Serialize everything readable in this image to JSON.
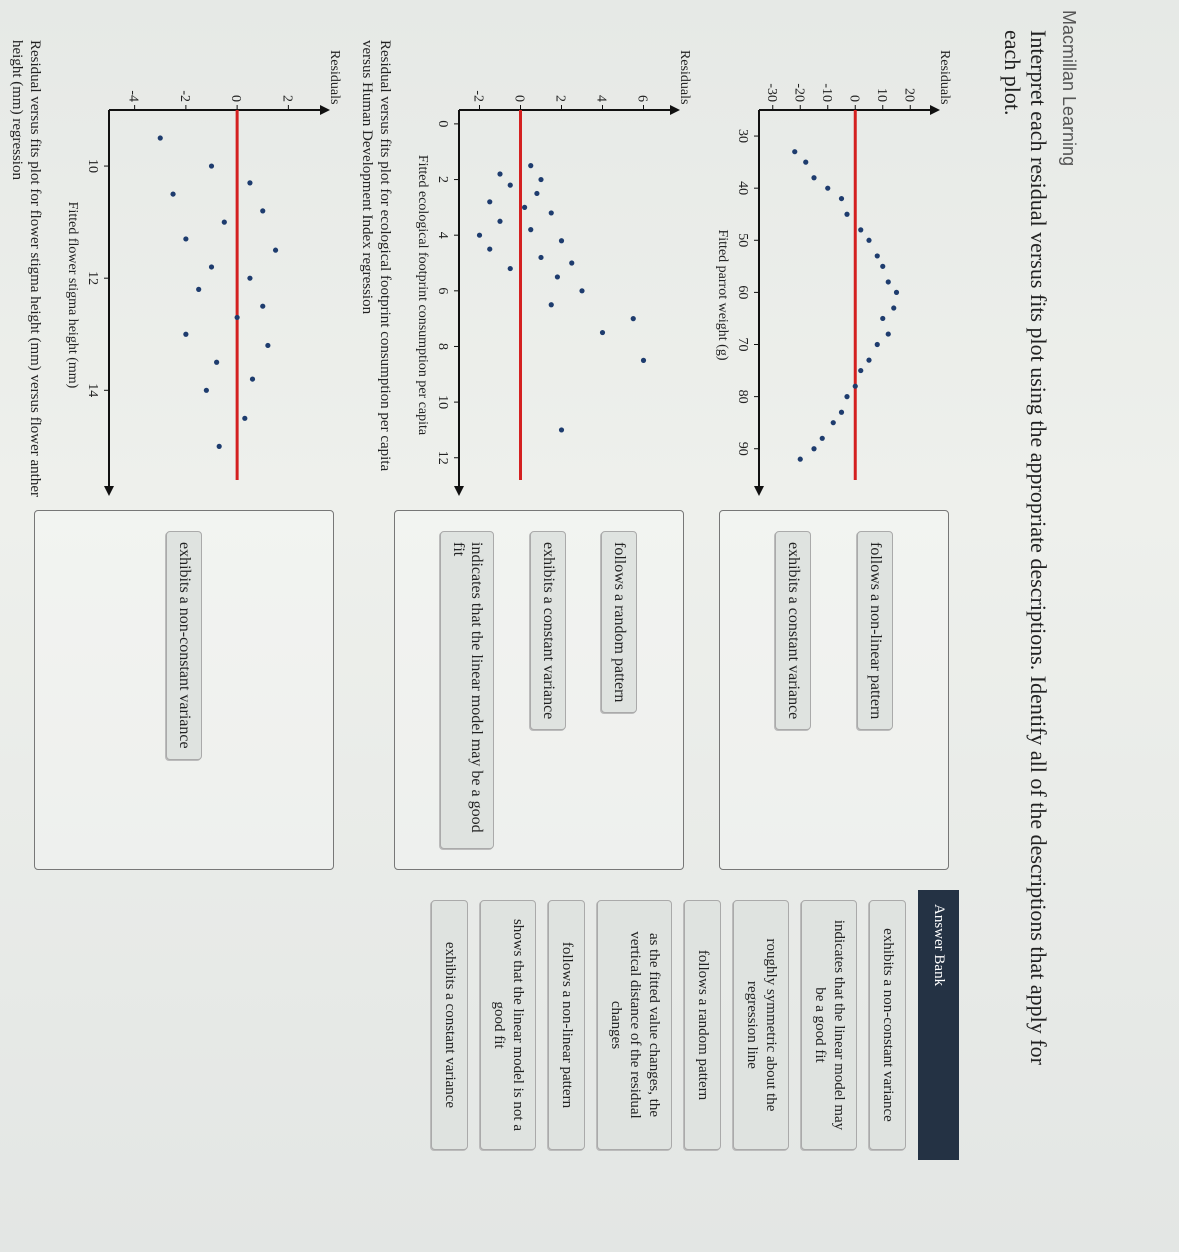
{
  "header": {
    "brand": "Macmillan Learning",
    "question": "Interpret each residual versus fits plot using the appropriate descriptions. Identify all of the descriptions that apply for each plot."
  },
  "plots": [
    {
      "ylabel": "Residuals",
      "xlabel": "Fitted parrot weight (g)",
      "caption": null,
      "xlim": [
        25,
        96
      ],
      "ylim": [
        -35,
        25
      ],
      "xticks": [
        30,
        40,
        50,
        60,
        70,
        80,
        90
      ],
      "yticks": [
        20,
        10,
        0,
        -10,
        -20,
        -30
      ],
      "points": [
        [
          33,
          -22
        ],
        [
          35,
          -18
        ],
        [
          38,
          -15
        ],
        [
          40,
          -10
        ],
        [
          42,
          -5
        ],
        [
          45,
          -3
        ],
        [
          48,
          2
        ],
        [
          50,
          5
        ],
        [
          53,
          8
        ],
        [
          55,
          10
        ],
        [
          58,
          12
        ],
        [
          60,
          15
        ],
        [
          63,
          14
        ],
        [
          65,
          10
        ],
        [
          68,
          12
        ],
        [
          70,
          8
        ],
        [
          73,
          5
        ],
        [
          75,
          2
        ],
        [
          78,
          0
        ],
        [
          80,
          -3
        ],
        [
          83,
          -5
        ],
        [
          85,
          -8
        ],
        [
          88,
          -12
        ],
        [
          90,
          -15
        ],
        [
          92,
          -20
        ]
      ]
    },
    {
      "ylabel": "Residuals",
      "xlabel": "Fitted ecological footprint consumption per capita",
      "caption": "Residual versus fits plot for ecological footprint consumption per capita versus Human Development Index regression",
      "xlim": [
        -0.5,
        12.8
      ],
      "ylim": [
        -3,
        7
      ],
      "xticks": [
        0,
        2,
        4,
        6,
        8,
        10,
        12
      ],
      "yticks": [
        6,
        4,
        2,
        0,
        -2
      ],
      "points": [
        [
          1.5,
          0.5
        ],
        [
          1.8,
          -1
        ],
        [
          2,
          1
        ],
        [
          2.2,
          -0.5
        ],
        [
          2.5,
          0.8
        ],
        [
          2.8,
          -1.5
        ],
        [
          3,
          0.2
        ],
        [
          3.2,
          1.5
        ],
        [
          3.5,
          -1
        ],
        [
          3.8,
          0.5
        ],
        [
          4,
          -2
        ],
        [
          4.2,
          2
        ],
        [
          4.5,
          -1.5
        ],
        [
          4.8,
          1
        ],
        [
          5,
          2.5
        ],
        [
          5.2,
          -0.5
        ],
        [
          5.5,
          1.8
        ],
        [
          6,
          3
        ],
        [
          6.5,
          1.5
        ],
        [
          7,
          5.5
        ],
        [
          7.5,
          4
        ],
        [
          8.5,
          6
        ],
        [
          11,
          2
        ]
      ]
    },
    {
      "ylabel": "Residuals",
      "xlabel": "Fitted flower stigma height (mm)",
      "caption": "Residual versus fits plot for flower stigma height (mm) versus flower anther height (mm) regression",
      "xlim": [
        9,
        15.6
      ],
      "ylim": [
        -5,
        3
      ],
      "xticks": [
        10,
        12,
        14
      ],
      "yticks": [
        2,
        0,
        -2,
        -4
      ],
      "points": [
        [
          9.5,
          -3
        ],
        [
          10,
          -1
        ],
        [
          10.3,
          0.5
        ],
        [
          10.5,
          -2.5
        ],
        [
          10.8,
          1
        ],
        [
          11,
          -0.5
        ],
        [
          11.3,
          -2
        ],
        [
          11.5,
          1.5
        ],
        [
          11.8,
          -1
        ],
        [
          12,
          0.5
        ],
        [
          12.2,
          -1.5
        ],
        [
          12.5,
          1
        ],
        [
          12.7,
          0
        ],
        [
          13,
          -2
        ],
        [
          13.2,
          1.2
        ],
        [
          13.5,
          -0.8
        ],
        [
          13.8,
          0.6
        ],
        [
          14,
          -1.2
        ],
        [
          14.5,
          0.3
        ],
        [
          15,
          -0.7
        ]
      ]
    }
  ],
  "targets": [
    [
      "follows a non-linear pattern",
      "exhibits a constant variance"
    ],
    [
      "follows a random pattern",
      "exhibits a constant variance",
      "indicates that the linear model may be a good fit"
    ],
    [
      "exhibits a non-constant variance"
    ]
  ],
  "answer_bank": {
    "title": "Answer Bank",
    "items": [
      "exhibits a non-constant variance",
      "indicates that the linear model may be a good fit",
      "roughly symmetric about the regression line",
      "follows a random pattern",
      "as the fitted value changes, the vertical distance of the residual changes",
      "follows a non-linear pattern",
      "shows that the linear model is not a good fit",
      "exhibits a constant variance"
    ]
  }
}
